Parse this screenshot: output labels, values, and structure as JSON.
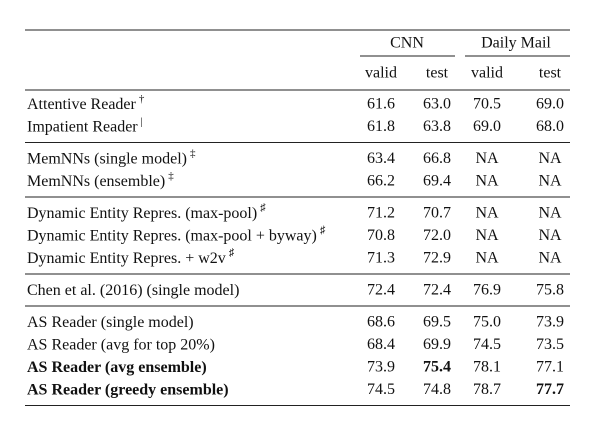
{
  "table": {
    "header": {
      "groups": [
        "CNN",
        "Daily Mail"
      ],
      "columns": [
        "valid",
        "test",
        "valid",
        "test"
      ]
    },
    "groups": [
      [
        {
          "name": "Attentive Reader",
          "sup": "†",
          "values": [
            "61.6",
            "63.0",
            "70.5",
            "69.0"
          ]
        },
        {
          "name": "Impatient Reader",
          "sup": "|",
          "values": [
            "61.8",
            "63.8",
            "69.0",
            "68.0"
          ]
        }
      ],
      [
        {
          "name": "MemNNs (single model)",
          "sup": "‡",
          "values": [
            "63.4",
            "66.8",
            "NA",
            "NA"
          ]
        },
        {
          "name": "MemNNs (ensemble)",
          "sup": "‡",
          "values": [
            "66.2",
            "69.4",
            "NA",
            "NA"
          ]
        }
      ],
      [
        {
          "name": "Dynamic Entity Repres. (max-pool)",
          "sup": "♯",
          "values": [
            "71.2",
            "70.7",
            "NA",
            "NA"
          ]
        },
        {
          "name": "Dynamic Entity Repres. (max-pool + byway)",
          "sup": "♯",
          "values": [
            "70.8",
            "72.0",
            "NA",
            "NA"
          ]
        },
        {
          "name": "Dynamic Entity Repres. + w2v",
          "sup": "♯",
          "values": [
            "71.3",
            "72.9",
            "NA",
            "NA"
          ]
        }
      ],
      [
        {
          "name": "Chen et al. (2016) (single model)",
          "values": [
            "72.4",
            "72.4",
            "76.9",
            "75.8"
          ]
        }
      ],
      [
        {
          "name": "AS Reader (single model)",
          "values": [
            "68.6",
            "69.5",
            "75.0",
            "73.9"
          ]
        },
        {
          "name": "AS Reader (avg for top 20%)",
          "values": [
            "68.4",
            "69.9",
            "74.5",
            "73.5"
          ]
        },
        {
          "name": "AS Reader (avg ensemble)",
          "bold_name": true,
          "bold_values": [
            1
          ],
          "values": [
            "73.9",
            "75.4",
            "78.1",
            "77.1"
          ]
        },
        {
          "name": "AS Reader (greedy ensemble)",
          "bold_name": true,
          "bold_values": [
            3
          ],
          "values": [
            "74.5",
            "74.8",
            "78.7",
            "77.7"
          ]
        }
      ]
    ]
  }
}
